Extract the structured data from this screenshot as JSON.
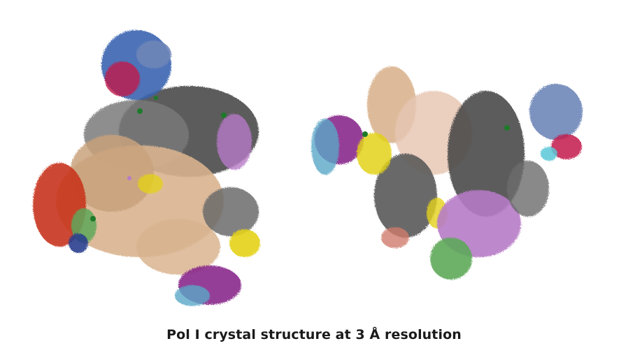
{
  "caption": "Pol I crystal structure at 3 Å resolution",
  "palette": {
    "wheat": "#d9b48f",
    "grey": "#6b6b6b",
    "dark_grey": "#4a4a4a",
    "light_grey": "#9a9a9a",
    "blue": "#3a64b0",
    "red": "#c8341c",
    "magenta": "#8a2a8c",
    "crimson": "#c21b4a",
    "yellow": "#e3d21b",
    "green": "#5ea85a",
    "violet": "#b77bc7",
    "cyan": "#5aa8c8",
    "slate": "#6f86b8",
    "salmon": "#cf7a6a",
    "pink": "#e7b6c4"
  }
}
